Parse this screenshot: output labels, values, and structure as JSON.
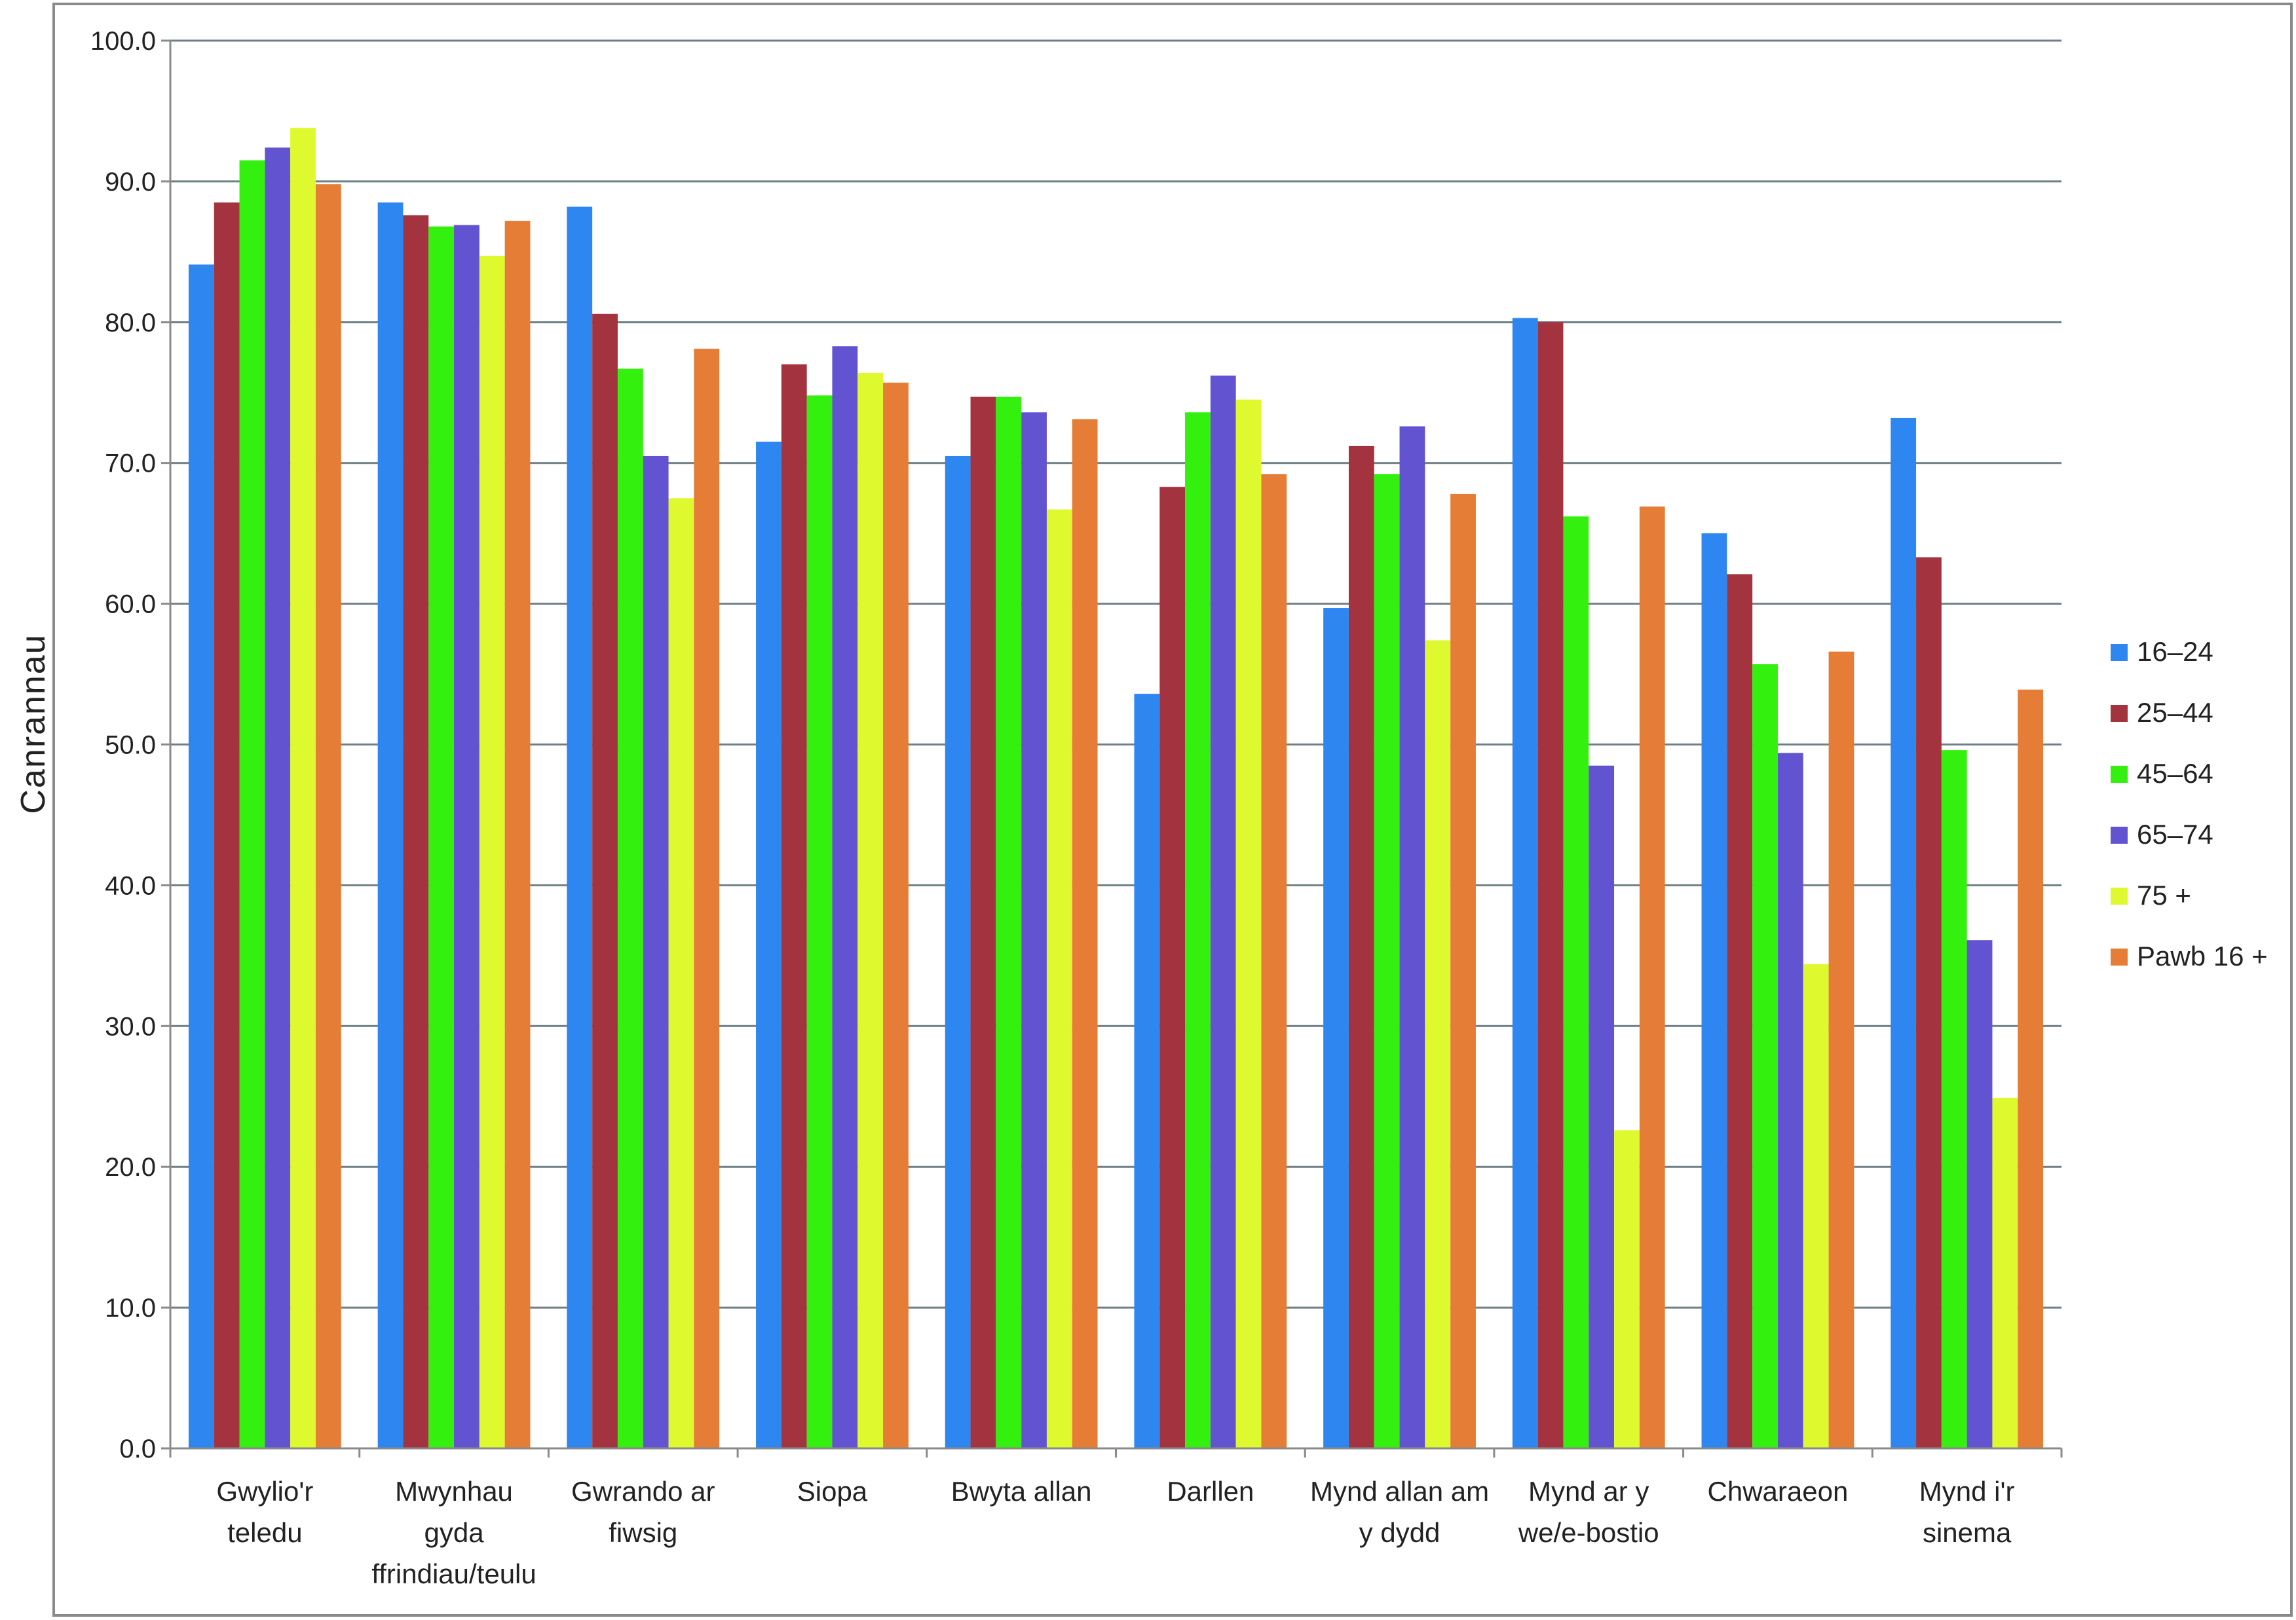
{
  "chart_data": {
    "type": "bar",
    "title": "",
    "xlabel": "",
    "ylabel": "Canrannau",
    "ylim": [
      0,
      100
    ],
    "ytick_step": 10,
    "ytick_labels": [
      "0.0",
      "10.0",
      "20.0",
      "30.0",
      "40.0",
      "50.0",
      "60.0",
      "70.0",
      "80.0",
      "90.0",
      "100.0"
    ],
    "grid": true,
    "legend_position": "right",
    "categories": [
      [
        "Gwylio'r",
        "teledu"
      ],
      [
        "Mwynhau",
        "gyda",
        "ffrindiau/teulu"
      ],
      [
        "Gwrando ar",
        "fiwsig"
      ],
      [
        "Siopa"
      ],
      [
        "Bwyta allan"
      ],
      [
        "Darllen"
      ],
      [
        "Mynd allan am",
        "y dydd"
      ],
      [
        "Mynd ar y",
        "we/e-bostio"
      ],
      [
        "Chwaraeon"
      ],
      [
        "Mynd i'r",
        "sinema"
      ]
    ],
    "series": [
      {
        "name": "16–24",
        "color": "#2E86F0",
        "values": [
          84.1,
          88.5,
          88.2,
          71.5,
          70.5,
          53.6,
          59.7,
          80.3,
          65.0,
          73.2
        ]
      },
      {
        "name": "25–44",
        "color": "#A3333F",
        "values": [
          88.5,
          87.6,
          80.6,
          77.0,
          74.7,
          68.3,
          71.2,
          80.0,
          62.1,
          63.3
        ]
      },
      {
        "name": "45–64",
        "color": "#33F00F",
        "values": [
          91.5,
          86.8,
          76.7,
          74.8,
          74.7,
          73.6,
          69.2,
          66.2,
          55.7,
          49.6
        ]
      },
      {
        "name": "65–74",
        "color": "#6253D1",
        "values": [
          92.4,
          86.9,
          70.5,
          78.3,
          73.6,
          76.2,
          72.6,
          48.5,
          49.4,
          36.1
        ]
      },
      {
        "name": "75 +",
        "color": "#DEFA2F",
        "values": [
          93.8,
          84.7,
          67.5,
          76.4,
          66.7,
          74.5,
          57.4,
          22.6,
          34.4,
          24.9
        ]
      },
      {
        "name": "Pawb 16 +",
        "color": "#E57D37",
        "values": [
          89.8,
          87.2,
          78.1,
          75.7,
          73.1,
          69.2,
          67.8,
          66.9,
          56.6,
          53.9
        ]
      }
    ]
  }
}
